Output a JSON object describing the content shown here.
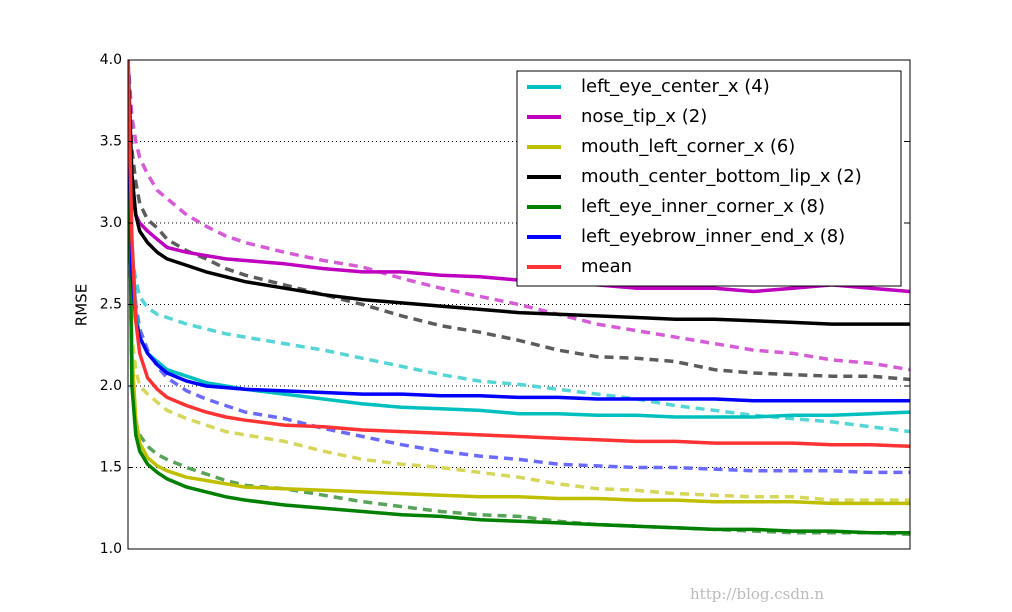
{
  "chart_data": {
    "type": "line",
    "ylabel": "RMSE",
    "x": [
      0,
      2,
      4,
      6,
      10,
      15,
      20,
      30,
      40,
      50,
      60,
      80,
      100,
      120,
      140,
      160,
      180,
      200,
      220,
      240,
      260,
      280,
      300,
      320,
      340,
      360,
      380,
      400
    ],
    "xlim": [
      0,
      400
    ],
    "ylim": [
      1.0,
      4.0
    ],
    "yticks": [
      {
        "value": 1.0,
        "label": "1.0"
      },
      1.5,
      {
        "value": 2.0,
        "label": "2.0"
      },
      2.5,
      {
        "value": 3.0,
        "label": "3.0"
      },
      3.5,
      {
        "value": 4.0,
        "label": "4.0"
      }
    ],
    "grid": true,
    "legend": "upper right",
    "watermark": "http://blog.csdn.n",
    "series": [
      {
        "color": "#55d5d5",
        "linestyle": "dashed",
        "values": [
          4.0,
          2.8,
          2.65,
          2.55,
          2.48,
          2.44,
          2.42,
          2.38,
          2.35,
          2.32,
          2.3,
          2.26,
          2.22,
          2.17,
          2.12,
          2.07,
          2.03,
          2.01,
          1.98,
          1.95,
          1.92,
          1.88,
          1.85,
          1.82,
          1.8,
          1.78,
          1.75,
          1.72
        ]
      },
      {
        "color": "#d65bd6",
        "linestyle": "dashed",
        "values": [
          4.0,
          3.65,
          3.5,
          3.4,
          3.3,
          3.2,
          3.15,
          3.05,
          2.98,
          2.92,
          2.88,
          2.82,
          2.77,
          2.73,
          2.66,
          2.6,
          2.55,
          2.5,
          2.44,
          2.38,
          2.34,
          2.3,
          2.26,
          2.22,
          2.2,
          2.16,
          2.14,
          2.1
        ]
      },
      {
        "color": "#d6d65b",
        "linestyle": "dashed",
        "values": [
          4.0,
          2.3,
          2.1,
          2.0,
          1.95,
          1.9,
          1.85,
          1.8,
          1.76,
          1.72,
          1.7,
          1.66,
          1.6,
          1.55,
          1.52,
          1.5,
          1.47,
          1.44,
          1.4,
          1.37,
          1.36,
          1.34,
          1.33,
          1.32,
          1.32,
          1.3,
          1.3,
          1.3
        ]
      },
      {
        "color": "#5c5c5c",
        "linestyle": "dashed",
        "values": [
          4.0,
          3.45,
          3.25,
          3.12,
          3.02,
          2.97,
          2.9,
          2.83,
          2.78,
          2.72,
          2.68,
          2.62,
          2.56,
          2.5,
          2.43,
          2.37,
          2.33,
          2.28,
          2.22,
          2.18,
          2.17,
          2.15,
          2.1,
          2.08,
          2.07,
          2.06,
          2.06,
          2.04
        ]
      },
      {
        "color": "#5aa35a",
        "linestyle": "dashed",
        "values": [
          4.0,
          2.0,
          1.78,
          1.7,
          1.63,
          1.58,
          1.55,
          1.5,
          1.46,
          1.42,
          1.39,
          1.37,
          1.33,
          1.29,
          1.26,
          1.23,
          1.21,
          1.2,
          1.17,
          1.15,
          1.14,
          1.13,
          1.12,
          1.11,
          1.1,
          1.1,
          1.1,
          1.09
        ]
      },
      {
        "color": "#6a6aff",
        "linestyle": "dashed",
        "values": [
          4.0,
          2.8,
          2.5,
          2.35,
          2.22,
          2.12,
          2.05,
          1.97,
          1.92,
          1.88,
          1.84,
          1.8,
          1.74,
          1.69,
          1.64,
          1.6,
          1.57,
          1.55,
          1.52,
          1.51,
          1.5,
          1.5,
          1.49,
          1.48,
          1.48,
          1.48,
          1.47,
          1.47
        ]
      },
      {
        "name": "left_eye_center_x (4)",
        "color": "#00bfbf",
        "linestyle": "solid",
        "values": [
          4.0,
          2.9,
          2.45,
          2.3,
          2.2,
          2.15,
          2.1,
          2.06,
          2.02,
          2.0,
          1.98,
          1.95,
          1.92,
          1.89,
          1.87,
          1.86,
          1.85,
          1.83,
          1.83,
          1.82,
          1.82,
          1.81,
          1.81,
          1.81,
          1.82,
          1.82,
          1.83,
          1.84
        ]
      },
      {
        "name": "nose_tip_x (2)",
        "color": "#bf00bf",
        "linestyle": "solid",
        "values": [
          4.0,
          3.2,
          3.05,
          3.0,
          2.95,
          2.9,
          2.85,
          2.82,
          2.8,
          2.78,
          2.77,
          2.75,
          2.72,
          2.7,
          2.7,
          2.68,
          2.67,
          2.65,
          2.63,
          2.62,
          2.6,
          2.6,
          2.6,
          2.58,
          2.6,
          2.62,
          2.6,
          2.58
        ]
      },
      {
        "name": "mouth_left_corner_x (6)",
        "color": "#bfbf00",
        "linestyle": "solid",
        "values": [
          4.0,
          2.2,
          1.8,
          1.65,
          1.56,
          1.51,
          1.48,
          1.44,
          1.42,
          1.4,
          1.38,
          1.37,
          1.36,
          1.35,
          1.34,
          1.33,
          1.32,
          1.32,
          1.31,
          1.31,
          1.3,
          1.3,
          1.29,
          1.29,
          1.29,
          1.28,
          1.28,
          1.28
        ]
      },
      {
        "name": "mouth_center_bottom_lip_x (2)",
        "color": "#000000",
        "linestyle": "solid",
        "values": [
          4.0,
          3.3,
          3.05,
          2.95,
          2.88,
          2.82,
          2.78,
          2.74,
          2.7,
          2.67,
          2.64,
          2.6,
          2.56,
          2.53,
          2.51,
          2.49,
          2.47,
          2.45,
          2.44,
          2.43,
          2.42,
          2.41,
          2.41,
          2.4,
          2.39,
          2.38,
          2.38,
          2.38
        ]
      },
      {
        "name": "left_eye_inner_corner_x (8)",
        "color": "#008000",
        "linestyle": "solid",
        "values": [
          4.0,
          2.0,
          1.7,
          1.6,
          1.52,
          1.47,
          1.43,
          1.38,
          1.35,
          1.32,
          1.3,
          1.27,
          1.25,
          1.23,
          1.21,
          1.2,
          1.18,
          1.17,
          1.16,
          1.15,
          1.14,
          1.13,
          1.12,
          1.12,
          1.11,
          1.11,
          1.1,
          1.1
        ]
      },
      {
        "name": "left_eyebrow_inner_end_x (8)",
        "color": "#0000ff",
        "linestyle": "solid",
        "values": [
          4.0,
          2.7,
          2.4,
          2.3,
          2.2,
          2.13,
          2.08,
          2.03,
          2.0,
          1.99,
          1.98,
          1.97,
          1.96,
          1.95,
          1.95,
          1.94,
          1.94,
          1.93,
          1.93,
          1.92,
          1.92,
          1.92,
          1.92,
          1.91,
          1.91,
          1.91,
          1.91,
          1.91
        ]
      },
      {
        "name": "mean",
        "color": "#ff3333",
        "linestyle": "solid",
        "values": [
          4.0,
          2.9,
          2.4,
          2.2,
          2.05,
          1.98,
          1.93,
          1.88,
          1.84,
          1.81,
          1.79,
          1.76,
          1.75,
          1.73,
          1.72,
          1.71,
          1.7,
          1.69,
          1.68,
          1.67,
          1.66,
          1.66,
          1.65,
          1.65,
          1.65,
          1.64,
          1.64,
          1.63
        ]
      }
    ]
  }
}
